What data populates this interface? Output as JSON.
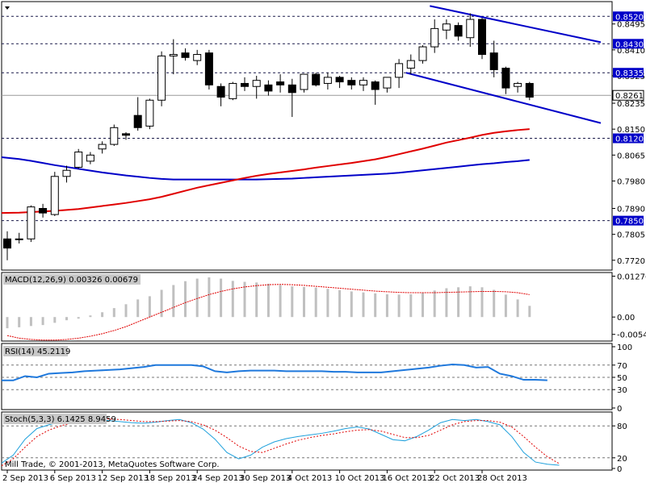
{
  "chart_data": [
    {
      "type": "candlestick",
      "ylim": [
        0.7693,
        0.8563
      ],
      "y_ticks": [
        "0.8495",
        "0.8410",
        "0.8325",
        "0.8235",
        "0.8150",
        "0.8065",
        "0.7980",
        "0.7890",
        "0.7805",
        "0.7720"
      ],
      "dates": [
        "2 Sep 2013",
        "6 Sep 2013",
        "12 Sep 2013",
        "18 Sep 2013",
        "24 Sep 2013",
        "30 Sep 2013",
        "4 Oct 2013",
        "10 Oct 2013",
        "16 Oct 2013",
        "22 Oct 2013",
        "28 Oct 2013"
      ],
      "candles": [
        {
          "o": 0.779,
          "h": 0.7815,
          "l": 0.772,
          "c": 0.776
        },
        {
          "o": 0.779,
          "h": 0.781,
          "l": 0.7775,
          "c": 0.779
        },
        {
          "o": 0.779,
          "h": 0.79,
          "l": 0.778,
          "c": 0.7895
        },
        {
          "o": 0.789,
          "h": 0.7905,
          "l": 0.786,
          "c": 0.7875
        },
        {
          "o": 0.787,
          "h": 0.801,
          "l": 0.7865,
          "c": 0.7995
        },
        {
          "o": 0.7995,
          "h": 0.803,
          "l": 0.7975,
          "c": 0.8015
        },
        {
          "o": 0.8025,
          "h": 0.8085,
          "l": 0.802,
          "c": 0.8075
        },
        {
          "o": 0.8045,
          "h": 0.8075,
          "l": 0.8035,
          "c": 0.8065
        },
        {
          "o": 0.8085,
          "h": 0.811,
          "l": 0.807,
          "c": 0.81
        },
        {
          "o": 0.81,
          "h": 0.8165,
          "l": 0.8095,
          "c": 0.8155
        },
        {
          "o": 0.8135,
          "h": 0.814,
          "l": 0.8115,
          "c": 0.813
        },
        {
          "o": 0.8195,
          "h": 0.8255,
          "l": 0.8145,
          "c": 0.8155
        },
        {
          "o": 0.816,
          "h": 0.825,
          "l": 0.815,
          "c": 0.8245
        },
        {
          "o": 0.8245,
          "h": 0.8405,
          "l": 0.8225,
          "c": 0.839
        },
        {
          "o": 0.839,
          "h": 0.8445,
          "l": 0.833,
          "c": 0.8395
        },
        {
          "o": 0.84,
          "h": 0.8415,
          "l": 0.8375,
          "c": 0.8385
        },
        {
          "o": 0.8375,
          "h": 0.841,
          "l": 0.836,
          "c": 0.8395
        },
        {
          "o": 0.84,
          "h": 0.841,
          "l": 0.828,
          "c": 0.8295
        },
        {
          "o": 0.829,
          "h": 0.83,
          "l": 0.8225,
          "c": 0.8255
        },
        {
          "o": 0.825,
          "h": 0.8305,
          "l": 0.8245,
          "c": 0.83
        },
        {
          "o": 0.83,
          "h": 0.832,
          "l": 0.8275,
          "c": 0.829
        },
        {
          "o": 0.829,
          "h": 0.8325,
          "l": 0.825,
          "c": 0.831
        },
        {
          "o": 0.8295,
          "h": 0.831,
          "l": 0.826,
          "c": 0.8275
        },
        {
          "o": 0.8305,
          "h": 0.833,
          "l": 0.827,
          "c": 0.8295
        },
        {
          "o": 0.8295,
          "h": 0.8315,
          "l": 0.819,
          "c": 0.827
        },
        {
          "o": 0.828,
          "h": 0.833,
          "l": 0.827,
          "c": 0.833
        },
        {
          "o": 0.833,
          "h": 0.8335,
          "l": 0.829,
          "c": 0.8295
        },
        {
          "o": 0.83,
          "h": 0.8335,
          "l": 0.828,
          "c": 0.832
        },
        {
          "o": 0.832,
          "h": 0.8325,
          "l": 0.8285,
          "c": 0.8305
        },
        {
          "o": 0.831,
          "h": 0.832,
          "l": 0.828,
          "c": 0.8295
        },
        {
          "o": 0.8295,
          "h": 0.832,
          "l": 0.8275,
          "c": 0.831
        },
        {
          "o": 0.8305,
          "h": 0.831,
          "l": 0.823,
          "c": 0.828
        },
        {
          "o": 0.8285,
          "h": 0.832,
          "l": 0.827,
          "c": 0.832
        },
        {
          "o": 0.832,
          "h": 0.838,
          "l": 0.8285,
          "c": 0.8365
        },
        {
          "o": 0.835,
          "h": 0.8395,
          "l": 0.833,
          "c": 0.8375
        },
        {
          "o": 0.8375,
          "h": 0.8425,
          "l": 0.8365,
          "c": 0.842
        },
        {
          "o": 0.842,
          "h": 0.851,
          "l": 0.84,
          "c": 0.848
        },
        {
          "o": 0.8475,
          "h": 0.851,
          "l": 0.8445,
          "c": 0.8495
        },
        {
          "o": 0.849,
          "h": 0.85,
          "l": 0.844,
          "c": 0.8455
        },
        {
          "o": 0.845,
          "h": 0.853,
          "l": 0.842,
          "c": 0.851
        },
        {
          "o": 0.851,
          "h": 0.8515,
          "l": 0.838,
          "c": 0.8395
        },
        {
          "o": 0.84,
          "h": 0.844,
          "l": 0.832,
          "c": 0.8345
        },
        {
          "o": 0.835,
          "h": 0.8355,
          "l": 0.8265,
          "c": 0.8285
        },
        {
          "o": 0.829,
          "h": 0.8305,
          "l": 0.827,
          "c": 0.83
        },
        {
          "o": 0.83,
          "h": 0.8305,
          "l": 0.8245,
          "c": 0.8255
        }
      ],
      "ma_red": [
        0.7875,
        0.7876,
        0.7878,
        0.788,
        0.7882,
        0.7885,
        0.7888,
        0.7893,
        0.7898,
        0.7903,
        0.7908,
        0.7914,
        0.792,
        0.7928,
        0.7938,
        0.7948,
        0.7958,
        0.7966,
        0.7974,
        0.7982,
        0.799,
        0.7997,
        0.8003,
        0.8008,
        0.8013,
        0.8018,
        0.8024,
        0.8029,
        0.8034,
        0.8039,
        0.8045,
        0.8051,
        0.8059,
        0.8068,
        0.8077,
        0.8086,
        0.8096,
        0.8106,
        0.8114,
        0.8122,
        0.8131,
        0.8138,
        0.8143,
        0.8147,
        0.815
      ],
      "ma_blue": [
        0.8058,
        0.8052,
        0.8046,
        0.8039,
        0.8032,
        0.8026,
        0.802,
        0.8014,
        0.8008,
        0.8003,
        0.7998,
        0.7994,
        0.799,
        0.7987,
        0.7985,
        0.7985,
        0.7985,
        0.7985,
        0.7985,
        0.7985,
        0.7985,
        0.7985,
        0.7986,
        0.7987,
        0.7988,
        0.799,
        0.7992,
        0.7994,
        0.7996,
        0.7998,
        0.8,
        0.8002,
        0.8004,
        0.8007,
        0.8011,
        0.8015,
        0.8019,
        0.8023,
        0.8027,
        0.8031,
        0.8035,
        0.8038,
        0.8042,
        0.8045,
        0.8049
      ],
      "hlines": [
        {
          "value": 0.852,
          "label": "0.8520"
        },
        {
          "value": 0.843,
          "label": "0.8430"
        },
        {
          "value": 0.8335,
          "label": "0.8335"
        },
        {
          "value": 0.812,
          "label": "0.8120"
        },
        {
          "value": 0.785,
          "label": "0.7850"
        }
      ],
      "current": {
        "value": 0.8261,
        "label": "0.8261"
      },
      "trendlines": [
        {
          "x1": 35.6,
          "y1": 0.8554,
          "x2": 50.0,
          "y2": 0.8435
        },
        {
          "x1": 33.6,
          "y1": 0.8335,
          "x2": 50.0,
          "y2": 0.817
        }
      ],
      "colors": {
        "ma_red": "#e00000",
        "ma_blue": "#0000c8",
        "trend": "#0000c8",
        "tag": "#0000c8"
      },
      "copyright": "Mill Trade, © 2001-2013, MetaQuotes Software Corp."
    },
    {
      "type": "bar",
      "label": "MACD(12,26,9) 0.00326 0.00679",
      "ylim": [
        -0.007,
        0.0134
      ],
      "y_ticks": [
        "0.01276",
        "0.00",
        "-0.00542"
      ],
      "histogram": [
        -0.0035,
        -0.0032,
        -0.0028,
        -0.0025,
        -0.0018,
        -0.001,
        -0.0005,
        0.0005,
        0.0015,
        0.0028,
        0.004,
        0.0055,
        0.0065,
        0.0085,
        0.01,
        0.0112,
        0.012,
        0.0124,
        0.012,
        0.0113,
        0.011,
        0.0108,
        0.0104,
        0.01,
        0.0096,
        0.0094,
        0.0092,
        0.0088,
        0.0084,
        0.008,
        0.0077,
        0.0074,
        0.0071,
        0.007,
        0.0071,
        0.0075,
        0.0083,
        0.009,
        0.0093,
        0.0096,
        0.0093,
        0.0085,
        0.007,
        0.0055,
        0.0035
      ],
      "signal": [
        -0.0058,
        -0.0066,
        -0.007,
        -0.0072,
        -0.0072,
        -0.007,
        -0.0066,
        -0.006,
        -0.0052,
        -0.0042,
        -0.003,
        -0.0015,
        0.0,
        0.0015,
        0.003,
        0.0045,
        0.0058,
        0.007,
        0.008,
        0.0088,
        0.0094,
        0.0098,
        0.0101,
        0.0102,
        0.0101,
        0.0099,
        0.0096,
        0.0093,
        0.009,
        0.0087,
        0.0084,
        0.0081,
        0.0079,
        0.0077,
        0.0076,
        0.0076,
        0.0076,
        0.0077,
        0.0078,
        0.0079,
        0.008,
        0.008,
        0.0079,
        0.0076,
        0.007
      ]
    },
    {
      "type": "line",
      "label": "RSI(14) 45.2119",
      "ylim": [
        0,
        100
      ],
      "y_ticks": [
        "100",
        "70",
        "50",
        "30",
        "0"
      ],
      "levels": [
        70,
        50,
        30
      ],
      "values": [
        45,
        45,
        52,
        50,
        56,
        57,
        58,
        60,
        61,
        62,
        63,
        65,
        67,
        70,
        70,
        70,
        70,
        68,
        60,
        58,
        60,
        61,
        61,
        61,
        60,
        60,
        60,
        60,
        59,
        59,
        58,
        58,
        58,
        60,
        62,
        64,
        66,
        69,
        71,
        70,
        66,
        67,
        56,
        52,
        46,
        46,
        45.2119
      ]
    },
    {
      "type": "line",
      "label": "Stoch(5,3,3) 6.1425 8.9459",
      "ylim": [
        0,
        100
      ],
      "y_ticks": [
        "80",
        "20",
        "0"
      ],
      "levels": [
        80,
        20
      ],
      "k": [
        10,
        25,
        55,
        75,
        82,
        88,
        92,
        94,
        92,
        90,
        88,
        86,
        85,
        87,
        90,
        92,
        86,
        74,
        55,
        30,
        18,
        25,
        40,
        50,
        56,
        60,
        63,
        66,
        70,
        75,
        78,
        74,
        64,
        54,
        52,
        60,
        72,
        86,
        92,
        90,
        92,
        88,
        82,
        60,
        30,
        12,
        8,
        6.1425
      ],
      "d": [
        5,
        18,
        40,
        60,
        72,
        80,
        86,
        90,
        92,
        93,
        92,
        90,
        88,
        88,
        89,
        90,
        88,
        82,
        72,
        58,
        42,
        32,
        30,
        38,
        46,
        53,
        58,
        62,
        65,
        69,
        72,
        73,
        70,
        64,
        58,
        58,
        62,
        72,
        82,
        88,
        90,
        90,
        87,
        78,
        60,
        40,
        22,
        8.9459
      ]
    }
  ]
}
